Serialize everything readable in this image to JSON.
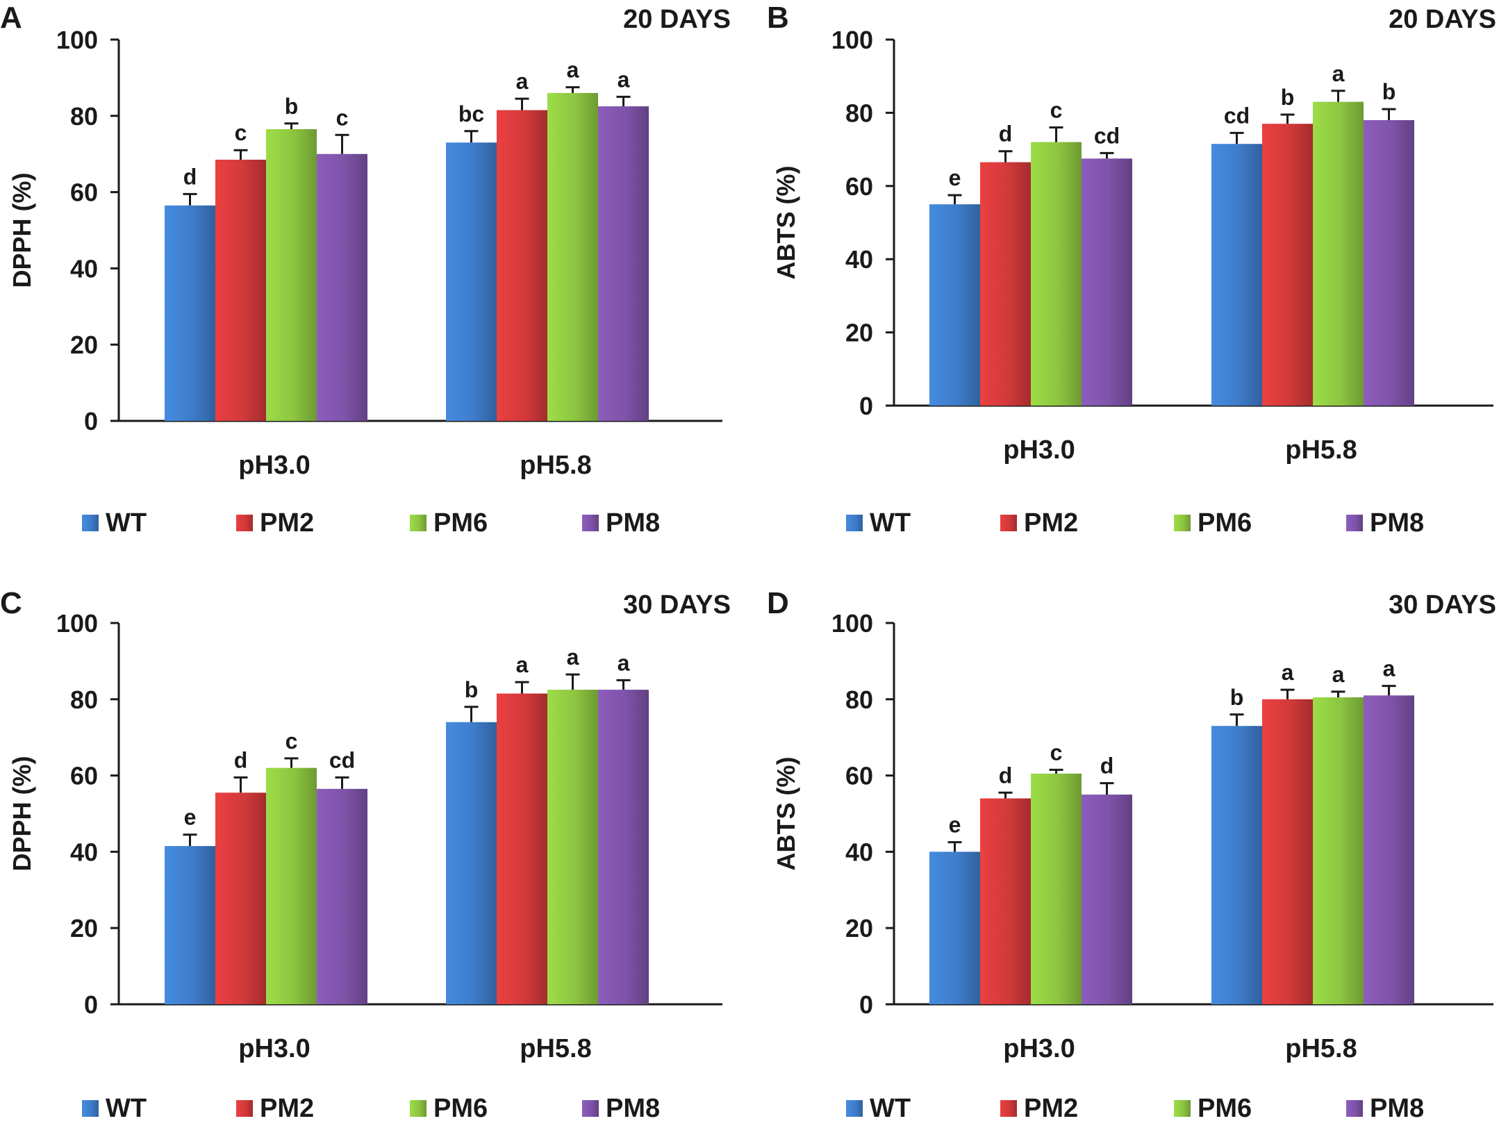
{
  "colors": {
    "WT": "#3E7CC9",
    "PM2": "#D2393A",
    "PM6": "#8CC540",
    "PM8": "#7E53A8",
    "axis": "#1a1a1a",
    "text": "#1a1a1a"
  },
  "chart_data": [
    {
      "type": "bar",
      "panel": "A",
      "title": "20 DAYS",
      "ylabel": "DPPH (%)",
      "xlabel": "",
      "ylim": [
        0,
        100
      ],
      "yticks": [
        0,
        20,
        40,
        60,
        80,
        100
      ],
      "categories": [
        "pH3.0",
        "pH5.8"
      ],
      "legend": "bottom",
      "series": [
        {
          "name": "WT",
          "values": [
            56.5,
            73.0
          ],
          "errors": [
            3.0,
            3.0
          ],
          "labels": [
            "d",
            "bc"
          ]
        },
        {
          "name": "PM2",
          "values": [
            68.5,
            81.5
          ],
          "errors": [
            2.5,
            3.0
          ],
          "labels": [
            "c",
            "a"
          ]
        },
        {
          "name": "PM6",
          "values": [
            76.5,
            86.0
          ],
          "errors": [
            1.5,
            1.5
          ],
          "labels": [
            "b",
            "a"
          ]
        },
        {
          "name": "PM8",
          "values": [
            70.0,
            82.5
          ],
          "errors": [
            5.0,
            2.5
          ],
          "labels": [
            "c",
            "a"
          ]
        }
      ]
    },
    {
      "type": "bar",
      "panel": "B",
      "title": "20 DAYS",
      "ylabel": "ABTS (%)",
      "xlabel": "",
      "ylim": [
        0,
        100
      ],
      "yticks": [
        0,
        20,
        40,
        60,
        80,
        100
      ],
      "categories": [
        "pH3.0",
        "pH5.8"
      ],
      "legend": "bottom",
      "series": [
        {
          "name": "WT",
          "values": [
            55.0,
            71.5
          ],
          "errors": [
            2.5,
            3.0
          ],
          "labels": [
            "e",
            "cd"
          ]
        },
        {
          "name": "PM2",
          "values": [
            66.5,
            77.0
          ],
          "errors": [
            3.0,
            2.5
          ],
          "labels": [
            "d",
            "b"
          ]
        },
        {
          "name": "PM6",
          "values": [
            72.0,
            83.0
          ],
          "errors": [
            4.0,
            3.0
          ],
          "labels": [
            "c",
            "a"
          ]
        },
        {
          "name": "PM8",
          "values": [
            67.5,
            78.0
          ],
          "errors": [
            1.5,
            3.0
          ],
          "labels": [
            "cd",
            "b"
          ]
        }
      ]
    },
    {
      "type": "bar",
      "panel": "C",
      "title": "30 DAYS",
      "ylabel": "DPPH (%)",
      "xlabel": "",
      "ylim": [
        0,
        100
      ],
      "yticks": [
        0,
        20,
        40,
        60,
        80,
        100
      ],
      "categories": [
        "pH3.0",
        "pH5.8"
      ],
      "legend": "bottom",
      "series": [
        {
          "name": "WT",
          "values": [
            41.5,
            74.0
          ],
          "errors": [
            3.0,
            4.0
          ],
          "labels": [
            "e",
            "b"
          ]
        },
        {
          "name": "PM2",
          "values": [
            55.5,
            81.5
          ],
          "errors": [
            4.0,
            3.0
          ],
          "labels": [
            "d",
            "a"
          ]
        },
        {
          "name": "PM6",
          "values": [
            62.0,
            82.5
          ],
          "errors": [
            2.5,
            4.0
          ],
          "labels": [
            "c",
            "a"
          ]
        },
        {
          "name": "PM8",
          "values": [
            56.5,
            82.5
          ],
          "errors": [
            3.0,
            2.5
          ],
          "labels": [
            "cd",
            "a"
          ]
        }
      ]
    },
    {
      "type": "bar",
      "panel": "D",
      "title": "30 DAYS",
      "ylabel": "ABTS (%)",
      "xlabel": "",
      "ylim": [
        0,
        100
      ],
      "yticks": [
        0,
        20,
        40,
        60,
        80,
        100
      ],
      "categories": [
        "pH3.0",
        "pH5.8"
      ],
      "legend": "bottom",
      "series": [
        {
          "name": "WT",
          "values": [
            40.0,
            73.0
          ],
          "errors": [
            2.5,
            3.0
          ],
          "labels": [
            "e",
            "b"
          ]
        },
        {
          "name": "PM2",
          "values": [
            54.0,
            80.0
          ],
          "errors": [
            1.5,
            2.5
          ],
          "labels": [
            "d",
            "a"
          ]
        },
        {
          "name": "PM6",
          "values": [
            60.5,
            80.5
          ],
          "errors": [
            1.0,
            1.5
          ],
          "labels": [
            "c",
            "a"
          ]
        },
        {
          "name": "PM8",
          "values": [
            55.0,
            81.0
          ],
          "errors": [
            3.0,
            2.5
          ],
          "labels": [
            "d",
            "a"
          ]
        }
      ]
    }
  ]
}
